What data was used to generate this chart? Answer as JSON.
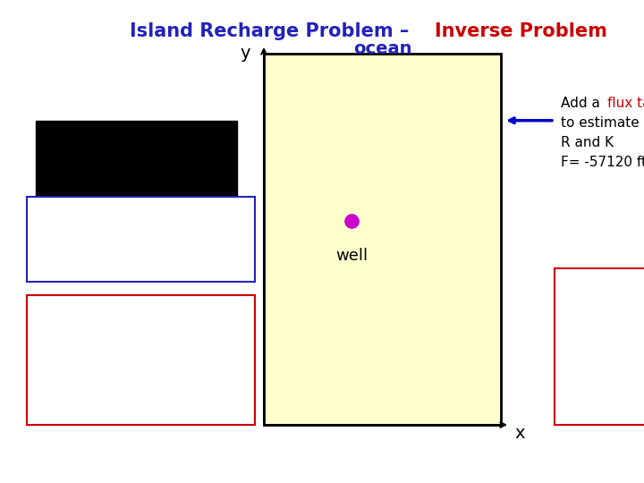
{
  "title_part1": "Island Recharge Problem – ",
  "title_part2": "Inverse Problem",
  "title_color1": "#2222bb",
  "title_color2": "#cc0000",
  "title_fontsize": 15,
  "ocean_label": "ocean",
  "ocean_color": "#2222bb",
  "island_facecolor": "#ffffcc",
  "island_edgecolor": "#000000",
  "black_rect_color": "#000000",
  "well_color": "#cc00cc",
  "well_label": "well",
  "arrow_color": "#0000cc",
  "flux_color1": "#000000",
  "flux_color2": "#cc0000",
  "head_box_color": "#2222bb",
  "target_color": "#cc0000",
  "unc_box_color": "#cc0000",
  "unc_text_color": "#000000",
  "right_box_color": "#cc0000",
  "bg_color": "#ffffff",
  "axis_label_color": "#000000"
}
